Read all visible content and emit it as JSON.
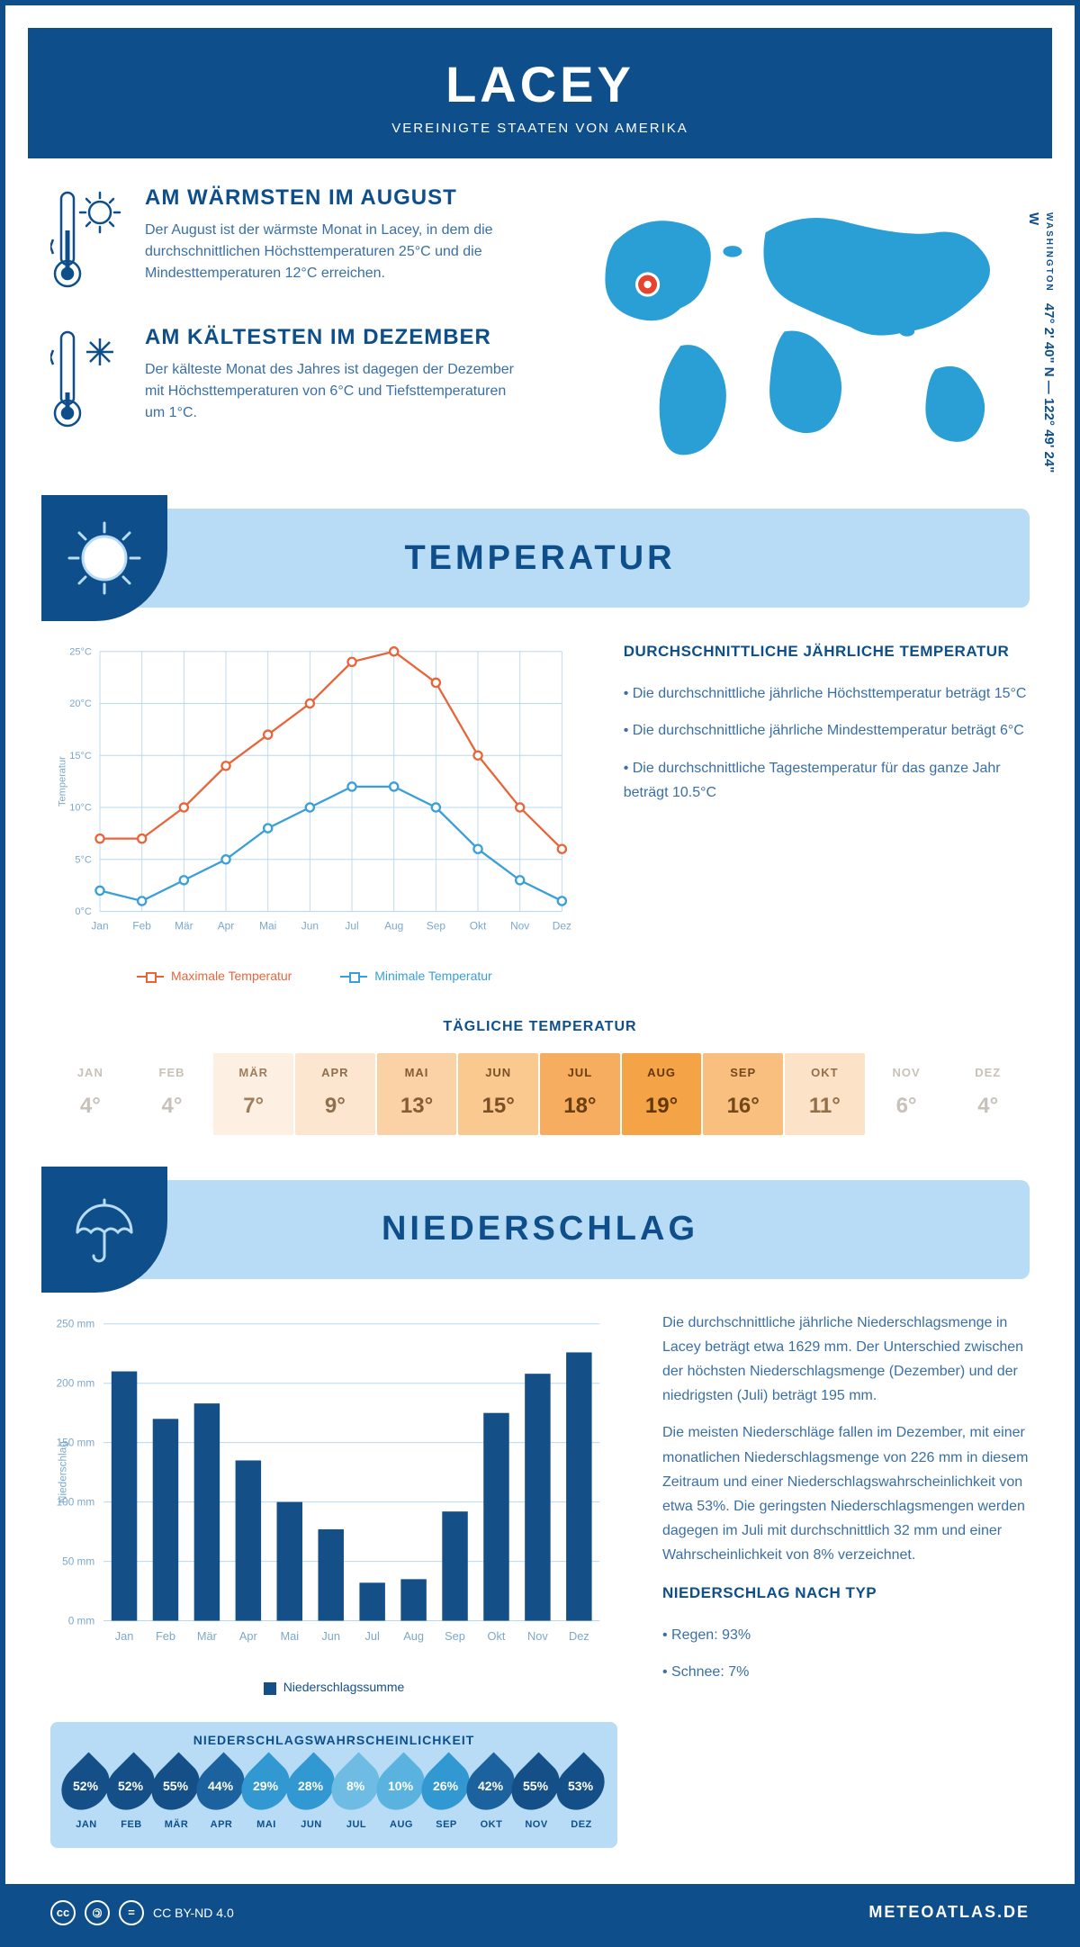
{
  "header": {
    "title": "LACEY",
    "subtitle": "VEREINIGTE STAATEN VON AMERIKA"
  },
  "coords": {
    "lat": "47° 2' 40\" N — 122° 49' 24\" W",
    "region": "WASHINGTON"
  },
  "warmest": {
    "heading": "AM WÄRMSTEN IM AUGUST",
    "body": "Der August ist der wärmste Monat in Lacey, in dem die durchschnittlichen Höchsttemperaturen 25°C und die Mindesttemperaturen 12°C erreichen."
  },
  "coldest": {
    "heading": "AM KÄLTESTEN IM DEZEMBER",
    "body": "Der kälteste Monat des Jahres ist dagegen der Dezember mit Höchsttemperaturen von 6°C und Tiefsttemperaturen um 1°C."
  },
  "temp_section": {
    "title": "TEMPERATUR"
  },
  "temp_chart": {
    "months": [
      "Jan",
      "Feb",
      "Mär",
      "Apr",
      "Mai",
      "Jun",
      "Jul",
      "Aug",
      "Sep",
      "Okt",
      "Nov",
      "Dez"
    ],
    "max": [
      7,
      7,
      10,
      14,
      17,
      20,
      24,
      25,
      22,
      15,
      10,
      6
    ],
    "min": [
      2,
      1,
      3,
      5,
      8,
      10,
      12,
      12,
      10,
      6,
      3,
      1
    ],
    "yticks": [
      0,
      5,
      10,
      15,
      20,
      25
    ],
    "ylabel": "Temperatur",
    "max_color": "#e8653a",
    "min_color": "#3a9fd8",
    "grid_color": "#b8d8ed",
    "tick_color": "#7ca8c9",
    "legend_max": "Maximale Temperatur",
    "legend_min": "Minimale Temperatur"
  },
  "temp_text": {
    "heading": "DURCHSCHNITTLICHE JÄHRLICHE TEMPERATUR",
    "b1": "• Die durchschnittliche jährliche Höchsttemperatur beträgt 15°C",
    "b2": "• Die durchschnittliche jährliche Mindesttemperatur beträgt 6°C",
    "b3": "• Die durchschnittliche Tagestemperatur für das ganze Jahr beträgt 10.5°C"
  },
  "daily": {
    "title": "TÄGLICHE TEMPERATUR",
    "months": [
      "JAN",
      "FEB",
      "MÄR",
      "APR",
      "MAI",
      "JUN",
      "JUL",
      "AUG",
      "SEP",
      "OKT",
      "NOV",
      "DEZ"
    ],
    "values": [
      "4°",
      "4°",
      "7°",
      "9°",
      "13°",
      "15°",
      "18°",
      "19°",
      "16°",
      "11°",
      "6°",
      "4°"
    ],
    "cell_bg": [
      "#ffffff",
      "#ffffff",
      "#fdf0e2",
      "#fce6cf",
      "#fad2a5",
      "#f9c98f",
      "#f6ad5f",
      "#f4a347",
      "#f8bf7f",
      "#fce3c8",
      "#ffffff",
      "#ffffff"
    ],
    "cell_text": [
      "#c7c1b9",
      "#c7c1b9",
      "#9c7e5e",
      "#8f6f4d",
      "#855d33",
      "#7a5024",
      "#6a3e0f",
      "#643707",
      "#75481a",
      "#926f49",
      "#c7c1b9",
      "#c7c1b9"
    ]
  },
  "precip_section": {
    "title": "NIEDERSCHLAG"
  },
  "precip_chart": {
    "months": [
      "Jan",
      "Feb",
      "Mär",
      "Apr",
      "Mai",
      "Jun",
      "Jul",
      "Aug",
      "Sep",
      "Okt",
      "Nov",
      "Dez"
    ],
    "values": [
      210,
      170,
      183,
      135,
      100,
      77,
      32,
      35,
      92,
      175,
      208,
      226
    ],
    "ymax": 250,
    "ystep": 50,
    "ylabel": "Niederschlag",
    "bar_color": "#154f88",
    "grid_color": "#b8d8ed",
    "tick_color": "#7ca8c9",
    "legend": "Niederschlagssumme"
  },
  "precip_text": {
    "p1": "Die durchschnittliche jährliche Niederschlagsmenge in Lacey beträgt etwa 1629 mm. Der Unterschied zwischen der höchsten Niederschlagsmenge (Dezember) und der niedrigsten (Juli) beträgt 195 mm.",
    "p2": "Die meisten Niederschläge fallen im Dezember, mit einer monatlichen Niederschlagsmenge von 226 mm in diesem Zeitraum und einer Niederschlagswahrscheinlichkeit von etwa 53%. Die geringsten Niederschlagsmengen werden dagegen im Juli mit durchschnittlich 32 mm und einer Wahrscheinlichkeit von 8% verzeichnet.",
    "type_heading": "NIEDERSCHLAG NACH TYP",
    "type1": "• Regen: 93%",
    "type2": "• Schnee: 7%"
  },
  "prob": {
    "title": "NIEDERSCHLAGSWAHRSCHEINLICHKEIT",
    "months": [
      "JAN",
      "FEB",
      "MÄR",
      "APR",
      "MAI",
      "JUN",
      "JUL",
      "AUG",
      "SEP",
      "OKT",
      "NOV",
      "DEZ"
    ],
    "pct": [
      "52%",
      "52%",
      "55%",
      "44%",
      "29%",
      "28%",
      "8%",
      "10%",
      "26%",
      "42%",
      "55%",
      "53%"
    ],
    "fill": [
      "#154f88",
      "#154f88",
      "#154f88",
      "#1c629f",
      "#3298d1",
      "#3298d1",
      "#6ebce4",
      "#5ab3df",
      "#3298d1",
      "#1c629f",
      "#154f88",
      "#154f88"
    ],
    "text": [
      "#ffffff",
      "#ffffff",
      "#ffffff",
      "#ffffff",
      "#ffffff",
      "#ffffff",
      "#ffffff",
      "#ffffff",
      "#ffffff",
      "#ffffff",
      "#ffffff",
      "#ffffff"
    ]
  },
  "footer": {
    "cc": "CC BY-ND 4.0",
    "site": "METEOATLAS.DE"
  }
}
